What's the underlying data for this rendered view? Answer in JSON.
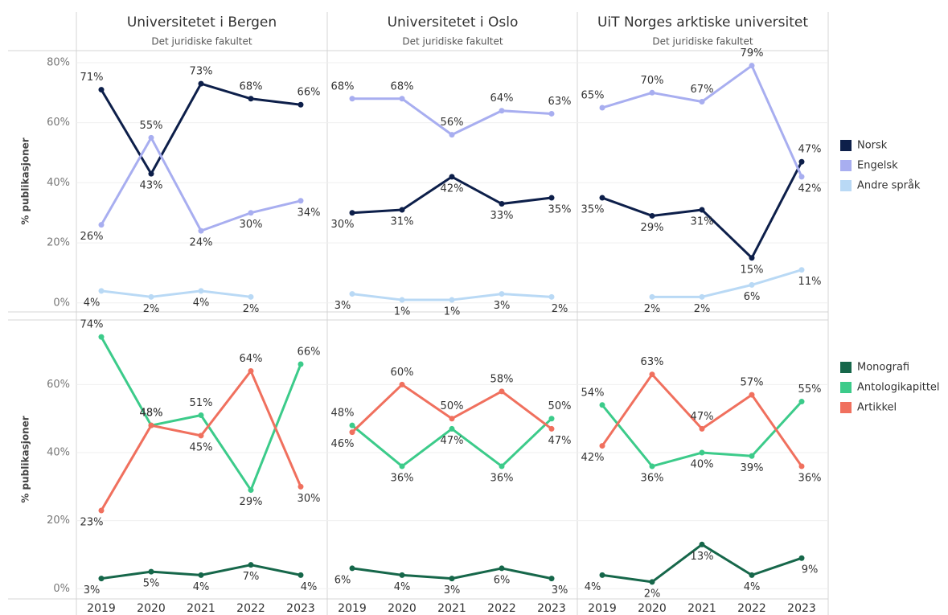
{
  "chart_data": {
    "type": "line",
    "categories": [
      "2019",
      "2020",
      "2021",
      "2022",
      "2023"
    ],
    "columns": [
      {
        "title": "Universitetet i Bergen",
        "subtitle": "Det juridiske fakultet"
      },
      {
        "title": "Universitetet i Oslo",
        "subtitle": "Det juridiske fakultet"
      },
      {
        "title": "UiT Norges arktiske universitet",
        "subtitle": "Det juridiske fakultet"
      }
    ],
    "rows": [
      {
        "ylabel": "% publikasjoner",
        "ylim": [
          -3,
          84
        ],
        "grid": true,
        "yticks": [
          {
            "value": 0,
            "label": "0%"
          },
          {
            "value": 20,
            "label": "20%"
          },
          {
            "value": 40,
            "label": "40%"
          },
          {
            "value": 60,
            "label": "60%"
          },
          {
            "value": 80,
            "label": "80%"
          }
        ],
        "series": [
          {
            "name": "Norsk",
            "color": "#0d1f4a",
            "values": [
              [
                71,
                43,
                73,
                68,
                66
              ],
              [
                30,
                31,
                42,
                33,
                35
              ],
              [
                35,
                29,
                31,
                15,
                47
              ]
            ],
            "value_labels": [
              [
                "71%",
                "43%",
                "73%",
                "68%",
                "66%"
              ],
              [
                "30%",
                "31%",
                "42%",
                "33%",
                "35%"
              ],
              [
                "35%",
                "29%",
                "31%",
                "15%",
                "47%"
              ]
            ]
          },
          {
            "name": "Engelsk",
            "color": "#a8aef0",
            "values": [
              [
                26,
                55,
                24,
                30,
                34
              ],
              [
                68,
                68,
                56,
                64,
                63
              ],
              [
                65,
                70,
                67,
                79,
                42
              ]
            ],
            "value_labels": [
              [
                "26%",
                "55%",
                "24%",
                "30%",
                "34%"
              ],
              [
                "68%",
                "68%",
                "56%",
                "64%",
                "63%"
              ],
              [
                "65%",
                "70%",
                "67%",
                "79%",
                "42%"
              ]
            ]
          },
          {
            "name": "Andre språk",
            "color": "#b9d9f5",
            "values": [
              [
                4,
                2,
                4,
                2,
                null
              ],
              [
                3,
                1,
                1,
                3,
                2
              ],
              [
                null,
                2,
                2,
                6,
                11
              ]
            ],
            "value_labels": [
              [
                "4%",
                "2%",
                "4%",
                "2%",
                null
              ],
              [
                "3%",
                "1%",
                "1%",
                "3%",
                "2%"
              ],
              [
                null,
                "2%",
                "2%",
                "6%",
                "11%"
              ]
            ]
          }
        ]
      },
      {
        "ylabel": "% publikasjoner",
        "ylim": [
          -3,
          79
        ],
        "grid": true,
        "yticks": [
          {
            "value": 0,
            "label": "0%"
          },
          {
            "value": 20,
            "label": "20%"
          },
          {
            "value": 40,
            "label": "40%"
          },
          {
            "value": 60,
            "label": "60%"
          }
        ],
        "series": [
          {
            "name": "Monografi",
            "color": "#16674a",
            "values": [
              [
                3,
                5,
                4,
                7,
                4
              ],
              [
                6,
                4,
                3,
                6,
                3
              ],
              [
                4,
                2,
                13,
                4,
                9
              ]
            ],
            "value_labels": [
              [
                "3%",
                "5%",
                "4%",
                "7%",
                "4%"
              ],
              [
                "6%",
                "4%",
                "3%",
                "6%",
                "3%"
              ],
              [
                "4%",
                "2%",
                "13%",
                "4%",
                "9%"
              ]
            ]
          },
          {
            "name": "Antologikapittel",
            "color": "#3ccb8a",
            "values": [
              [
                74,
                48,
                51,
                29,
                66
              ],
              [
                48,
                36,
                47,
                36,
                50
              ],
              [
                54,
                36,
                40,
                39,
                55
              ]
            ],
            "value_labels": [
              [
                "74%",
                "48%",
                "51%",
                "29%",
                "66%"
              ],
              [
                "48%",
                "36%",
                "47%",
                "36%",
                "50%"
              ],
              [
                "54%",
                "36%",
                "40%",
                "39%",
                "55%"
              ]
            ]
          },
          {
            "name": "Artikkel",
            "color": "#f0705e",
            "values": [
              [
                23,
                48,
                45,
                64,
                30
              ],
              [
                46,
                60,
                50,
                58,
                47
              ],
              [
                42,
                63,
                47,
                57,
                36
              ]
            ],
            "value_labels": [
              [
                "23%",
                "48%",
                "45%",
                "64%",
                "30%"
              ],
              [
                "46%",
                "60%",
                "50%",
                "58%",
                "47%"
              ],
              [
                "42%",
                "63%",
                "47%",
                "57%",
                "36%"
              ]
            ]
          }
        ]
      }
    ]
  }
}
